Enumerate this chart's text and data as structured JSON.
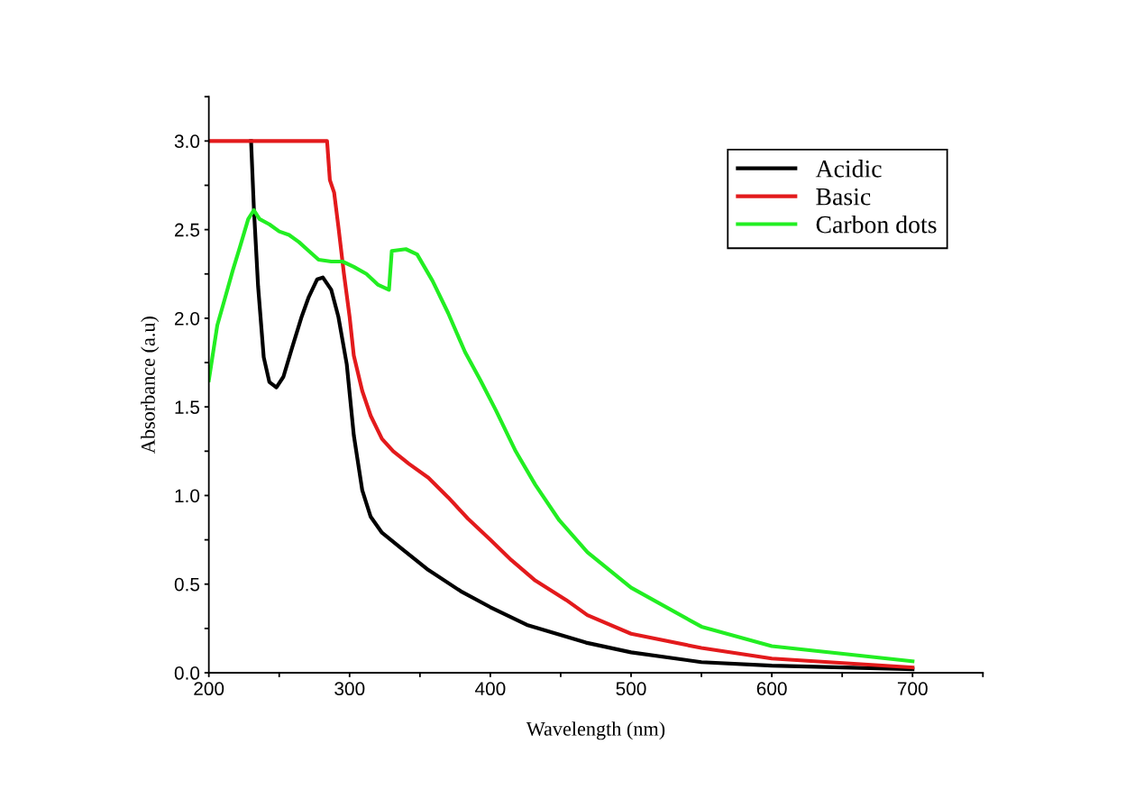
{
  "chart_data": {
    "type": "line",
    "xlabel": "Wavelength (nm)",
    "ylabel": "Absorbance (a.u)",
    "xlim": [
      200,
      750
    ],
    "ylim": [
      0,
      3.25
    ],
    "xticks": [
      200,
      {
        "value": 250,
        "label": null
      },
      300,
      {
        "value": 350,
        "label": null
      },
      400,
      {
        "value": 450,
        "label": null
      },
      500,
      {
        "value": 550,
        "label": null
      },
      600,
      {
        "value": 650,
        "label": null
      },
      700,
      {
        "value": 750,
        "label": null
      }
    ],
    "yticks": [
      {
        "value": 0,
        "label": "0.0"
      },
      {
        "value": 0.25,
        "label": null
      },
      {
        "value": 0.5,
        "label": "0.5"
      },
      {
        "value": 0.75,
        "label": null
      },
      {
        "value": 1.0,
        "label": "1.0"
      },
      {
        "value": 1.25,
        "label": null
      },
      {
        "value": 1.5,
        "label": "1.5"
      },
      {
        "value": 1.75,
        "label": null
      },
      {
        "value": 2.0,
        "label": "2.0"
      },
      {
        "value": 2.25,
        "label": null
      },
      {
        "value": 2.5,
        "label": "2.5"
      },
      {
        "value": 2.75,
        "label": null
      },
      {
        "value": 3.0,
        "label": "3.0"
      },
      {
        "value": 3.25,
        "label": null
      }
    ],
    "legend": "top right",
    "grid": false,
    "marker": "none",
    "line_style": "solid",
    "series": [
      {
        "name": "Acidic",
        "color": "#000000",
        "x": [
          230,
          232,
          235,
          239,
          243,
          248,
          253,
          259,
          266,
          271,
          277,
          281,
          287,
          292,
          298,
          303,
          309,
          315,
          323,
          337,
          356,
          379,
          400,
          426,
          468,
          500,
          550,
          600,
          700
        ],
        "values": [
          3.0,
          2.62,
          2.18,
          1.78,
          1.64,
          1.61,
          1.67,
          1.83,
          2.01,
          2.12,
          2.22,
          2.23,
          2.16,
          2.01,
          1.74,
          1.34,
          1.03,
          0.88,
          0.79,
          0.7,
          0.58,
          0.46,
          0.37,
          0.27,
          0.17,
          0.115,
          0.06,
          0.04,
          0.02
        ]
      },
      {
        "name": "Basic",
        "color": "#e31a1c",
        "x": [
          200,
          284,
          286,
          289,
          292,
          296,
          300,
          303,
          309,
          315,
          323,
          331,
          342,
          356,
          370,
          384,
          400,
          415,
          432,
          454,
          469,
          500,
          550,
          600,
          700
        ],
        "values": [
          3.0,
          3.0,
          2.78,
          2.71,
          2.52,
          2.25,
          2.01,
          1.79,
          1.59,
          1.45,
          1.32,
          1.25,
          1.18,
          1.1,
          0.99,
          0.87,
          0.75,
          0.635,
          0.52,
          0.41,
          0.325,
          0.22,
          0.14,
          0.08,
          0.03
        ]
      },
      {
        "name": "Carbon dots",
        "color": "#22ee22",
        "x": [
          200,
          206,
          211,
          217,
          222,
          228,
          232,
          236,
          243,
          250,
          257,
          264,
          271,
          278,
          287,
          295,
          303,
          312,
          320,
          328,
          330,
          340,
          348,
          359,
          370,
          382,
          393,
          404,
          418,
          432,
          449,
          469,
          500,
          550,
          600,
          700
        ],
        "values": [
          1.65,
          1.96,
          2.1,
          2.27,
          2.4,
          2.56,
          2.61,
          2.56,
          2.53,
          2.49,
          2.47,
          2.43,
          2.38,
          2.33,
          2.32,
          2.32,
          2.29,
          2.25,
          2.19,
          2.16,
          2.38,
          2.39,
          2.36,
          2.21,
          2.03,
          1.81,
          1.65,
          1.48,
          1.25,
          1.06,
          0.86,
          0.68,
          0.48,
          0.26,
          0.15,
          0.065
        ]
      }
    ]
  }
}
